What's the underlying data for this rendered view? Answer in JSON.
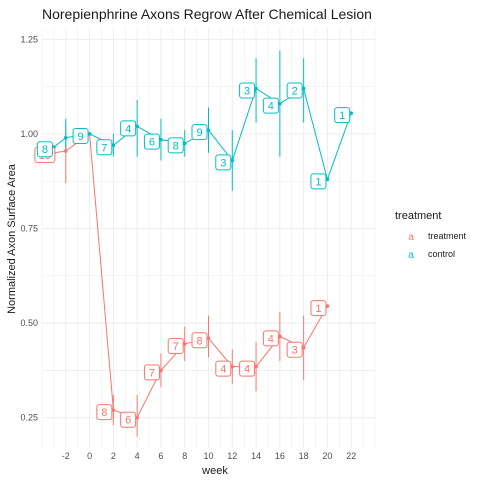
{
  "chart_data": {
    "type": "line",
    "title": "Norepienphrine Axons Regrow After Chemical Lesion",
    "xlabel": "week",
    "ylabel": "Normalized Axon Surface Area",
    "xlim": [
      -4,
      24
    ],
    "ylim": [
      0.17,
      1.28
    ],
    "x_ticks": [
      -2,
      0,
      2,
      4,
      6,
      8,
      10,
      12,
      14,
      16,
      18,
      20,
      22
    ],
    "y_ticks": [
      0.25,
      0.5,
      0.75,
      1.0,
      1.25
    ],
    "y_tick_labels": [
      "0.25",
      "0.50",
      "0.75",
      "1.00",
      "1.25"
    ],
    "grid": true,
    "legend": {
      "title": "treatment",
      "placement": "right",
      "key_glyph": "a"
    },
    "series": [
      {
        "name": "treatment",
        "color": "#F8766D",
        "points": [
          {
            "x": -3,
            "y": 0.95,
            "ymin": 0.95,
            "ymax": 0.95,
            "label": "10"
          },
          {
            "x": -2,
            "y": 0.955,
            "ymin": 0.87,
            "ymax": 1.03,
            "label": ""
          },
          {
            "x": 0,
            "y": 1.0,
            "ymin": 1.0,
            "ymax": 1.0,
            "label": ""
          },
          {
            "x": 2,
            "y": 0.27,
            "ymin": 0.23,
            "ymax": 0.31,
            "label": "8"
          },
          {
            "x": 4,
            "y": 0.25,
            "ymin": 0.2,
            "ymax": 0.31,
            "label": "6"
          },
          {
            "x": 6,
            "y": 0.375,
            "ymin": 0.33,
            "ymax": 0.42,
            "label": "7"
          },
          {
            "x": 8,
            "y": 0.445,
            "ymin": 0.4,
            "ymax": 0.49,
            "label": "7"
          },
          {
            "x": 10,
            "y": 0.46,
            "ymin": 0.41,
            "ymax": 0.52,
            "label": "8"
          },
          {
            "x": 12,
            "y": 0.385,
            "ymin": 0.34,
            "ymax": 0.43,
            "label": "4"
          },
          {
            "x": 14,
            "y": 0.385,
            "ymin": 0.32,
            "ymax": 0.45,
            "label": "4"
          },
          {
            "x": 16,
            "y": 0.465,
            "ymin": 0.4,
            "ymax": 0.53,
            "label": "4"
          },
          {
            "x": 18,
            "y": 0.435,
            "ymin": 0.35,
            "ymax": 0.52,
            "label": "3"
          },
          {
            "x": 20,
            "y": 0.545,
            "ymin": 0.545,
            "ymax": 0.545,
            "label": "1"
          }
        ]
      },
      {
        "name": "control",
        "color": "#00BFC4",
        "points": [
          {
            "x": -3,
            "y": 0.965,
            "ymin": 0.965,
            "ymax": 0.965,
            "label": "8"
          },
          {
            "x": -2,
            "y": 0.99,
            "ymin": 0.95,
            "ymax": 1.04,
            "label": ""
          },
          {
            "x": 0,
            "y": 1.0,
            "ymin": 1.0,
            "ymax": 1.0,
            "label": "9"
          },
          {
            "x": 2,
            "y": 0.97,
            "ymin": 0.94,
            "ymax": 1.0,
            "label": "7"
          },
          {
            "x": 4,
            "y": 1.02,
            "ymin": 0.94,
            "ymax": 1.09,
            "label": "4"
          },
          {
            "x": 6,
            "y": 0.985,
            "ymin": 0.93,
            "ymax": 1.04,
            "label": "6"
          },
          {
            "x": 8,
            "y": 0.975,
            "ymin": 0.94,
            "ymax": 1.01,
            "label": "8"
          },
          {
            "x": 10,
            "y": 1.01,
            "ymin": 0.95,
            "ymax": 1.07,
            "label": "9"
          },
          {
            "x": 12,
            "y": 0.93,
            "ymin": 0.85,
            "ymax": 1.01,
            "label": "3"
          },
          {
            "x": 14,
            "y": 1.12,
            "ymin": 1.03,
            "ymax": 1.2,
            "label": "3"
          },
          {
            "x": 16,
            "y": 1.08,
            "ymin": 0.94,
            "ymax": 1.22,
            "label": "4"
          },
          {
            "x": 18,
            "y": 1.12,
            "ymin": 1.03,
            "ymax": 1.2,
            "label": "2"
          },
          {
            "x": 20,
            "y": 0.88,
            "ymin": 0.88,
            "ymax": 0.88,
            "label": "1"
          },
          {
            "x": 22,
            "y": 1.055,
            "ymin": 1.055,
            "ymax": 1.055,
            "label": "1"
          }
        ]
      }
    ]
  }
}
